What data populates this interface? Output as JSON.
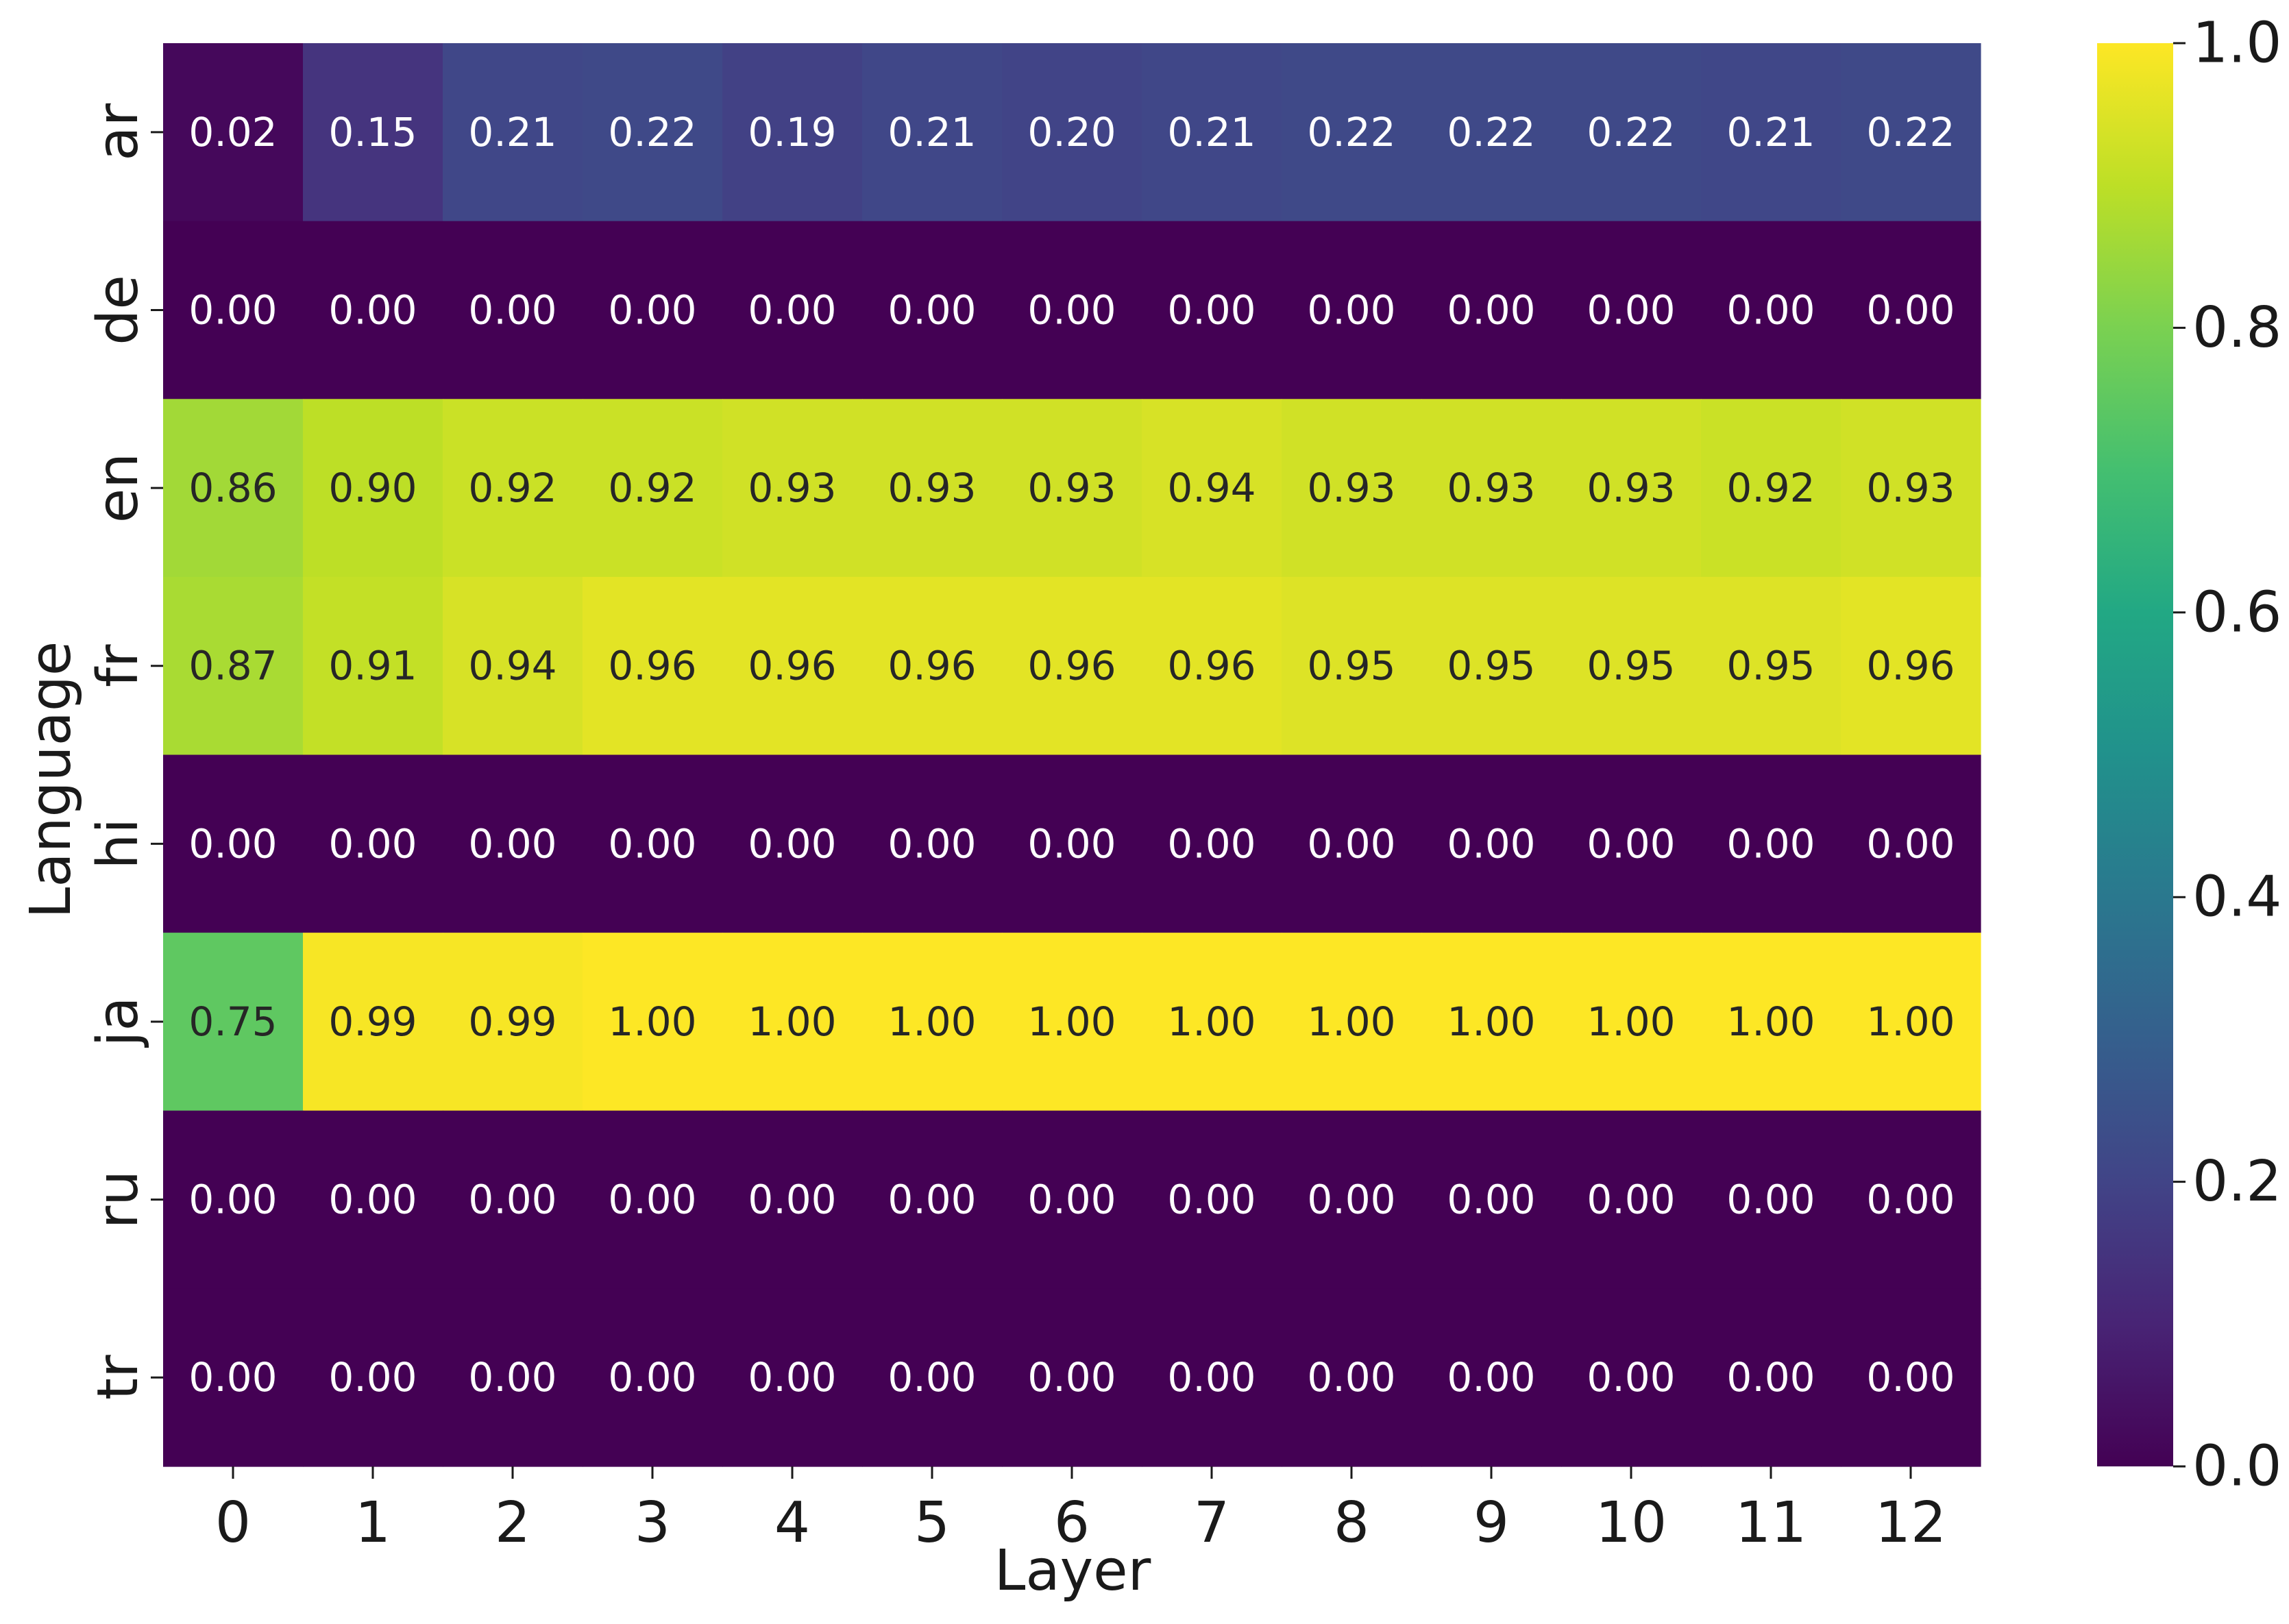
{
  "chart_data": {
    "type": "heatmap",
    "title": "",
    "xlabel": "Layer",
    "ylabel": "Language",
    "x_categories": [
      "0",
      "1",
      "2",
      "3",
      "4",
      "5",
      "6",
      "7",
      "8",
      "9",
      "10",
      "11",
      "12"
    ],
    "y_categories": [
      "ar",
      "de",
      "en",
      "fr",
      "hi",
      "ja",
      "ru",
      "tr"
    ],
    "values": [
      [
        0.02,
        0.15,
        0.21,
        0.22,
        0.19,
        0.21,
        0.2,
        0.21,
        0.22,
        0.22,
        0.22,
        0.21,
        0.22
      ],
      [
        0.0,
        0.0,
        0.0,
        0.0,
        0.0,
        0.0,
        0.0,
        0.0,
        0.0,
        0.0,
        0.0,
        0.0,
        0.0
      ],
      [
        0.86,
        0.9,
        0.92,
        0.92,
        0.93,
        0.93,
        0.93,
        0.94,
        0.93,
        0.93,
        0.93,
        0.92,
        0.93
      ],
      [
        0.87,
        0.91,
        0.94,
        0.96,
        0.96,
        0.96,
        0.96,
        0.96,
        0.95,
        0.95,
        0.95,
        0.95,
        0.96
      ],
      [
        0.0,
        0.0,
        0.0,
        0.0,
        0.0,
        0.0,
        0.0,
        0.0,
        0.0,
        0.0,
        0.0,
        0.0,
        0.0
      ],
      [
        0.75,
        0.99,
        0.99,
        1.0,
        1.0,
        1.0,
        1.0,
        1.0,
        1.0,
        1.0,
        1.0,
        1.0,
        1.0
      ],
      [
        0.0,
        0.0,
        0.0,
        0.0,
        0.0,
        0.0,
        0.0,
        0.0,
        0.0,
        0.0,
        0.0,
        0.0,
        0.0
      ],
      [
        0.0,
        0.0,
        0.0,
        0.0,
        0.0,
        0.0,
        0.0,
        0.0,
        0.0,
        0.0,
        0.0,
        0.0,
        0.0
      ]
    ],
    "colormap": "viridis",
    "colorbar": {
      "range": [
        0.0,
        1.0
      ],
      "ticks": [
        "0.0",
        "0.2",
        "0.4",
        "0.6",
        "0.8",
        "1.0"
      ]
    },
    "grid": false
  }
}
